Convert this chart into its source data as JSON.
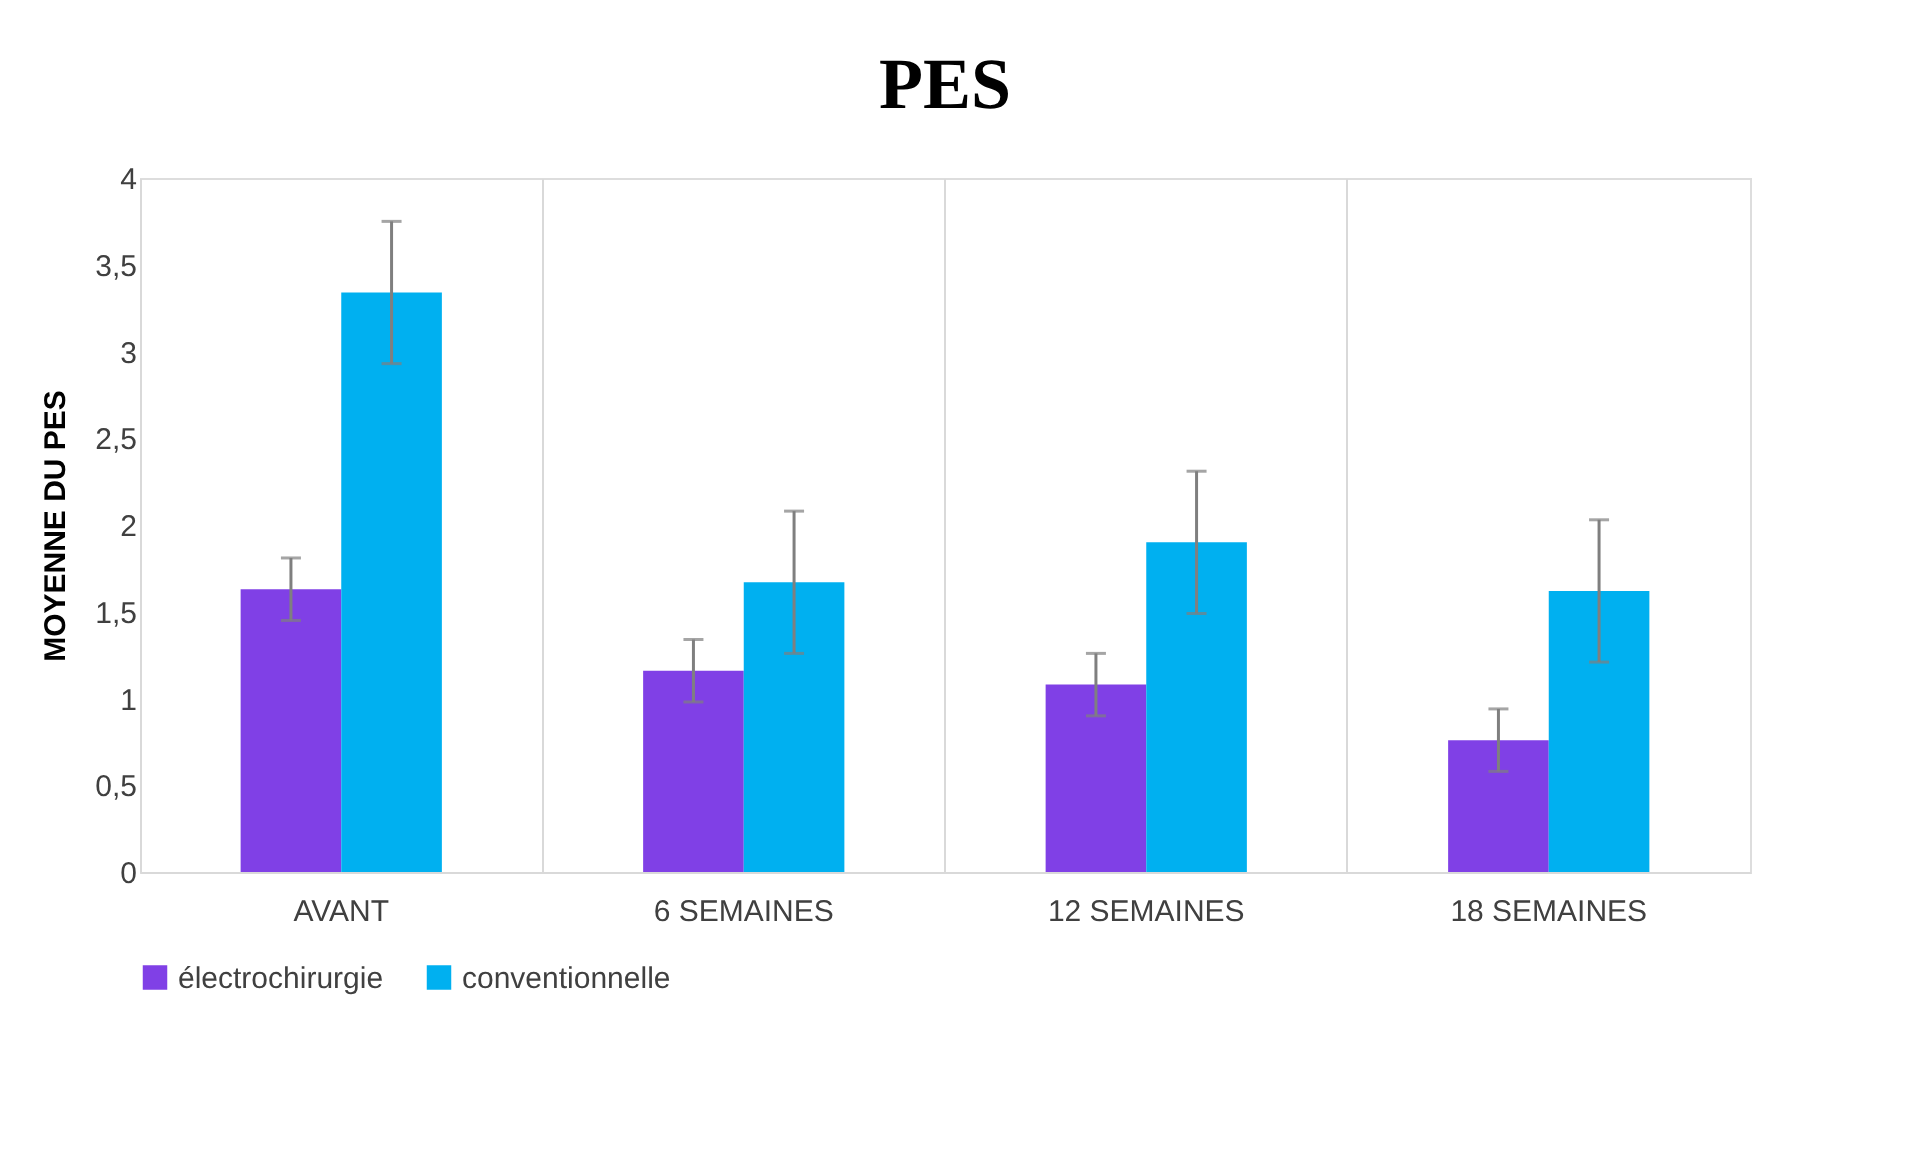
{
  "chart_data": {
    "type": "bar",
    "title": "PES",
    "ylabel": "MOYENNE DU PES",
    "categories": [
      "AVANT",
      "6 SEMAINES",
      "12 SEMAINES",
      "18 SEMAINES"
    ],
    "series": [
      {
        "name": "électrochirurgie",
        "color": "#8040e6",
        "values": [
          1.63,
          1.16,
          1.08,
          0.76
        ],
        "errors": [
          0.18,
          0.18,
          0.18,
          0.18
        ]
      },
      {
        "name": "conventionnelle",
        "color": "#00b0f0",
        "values": [
          3.34,
          1.67,
          1.9,
          1.62
        ],
        "errors": [
          0.41,
          0.41,
          0.41,
          0.41
        ]
      }
    ],
    "ylim": [
      0,
      4
    ],
    "yticks": [
      0,
      {
        "value": 0.5,
        "label": "0,5"
      },
      1,
      {
        "value": 1.5,
        "label": "1,5"
      },
      2,
      {
        "value": 2.5,
        "label": "2,5"
      },
      3,
      {
        "value": 3.5,
        "label": "3,5"
      },
      4
    ],
    "grid": "x",
    "legend": "bottom"
  }
}
